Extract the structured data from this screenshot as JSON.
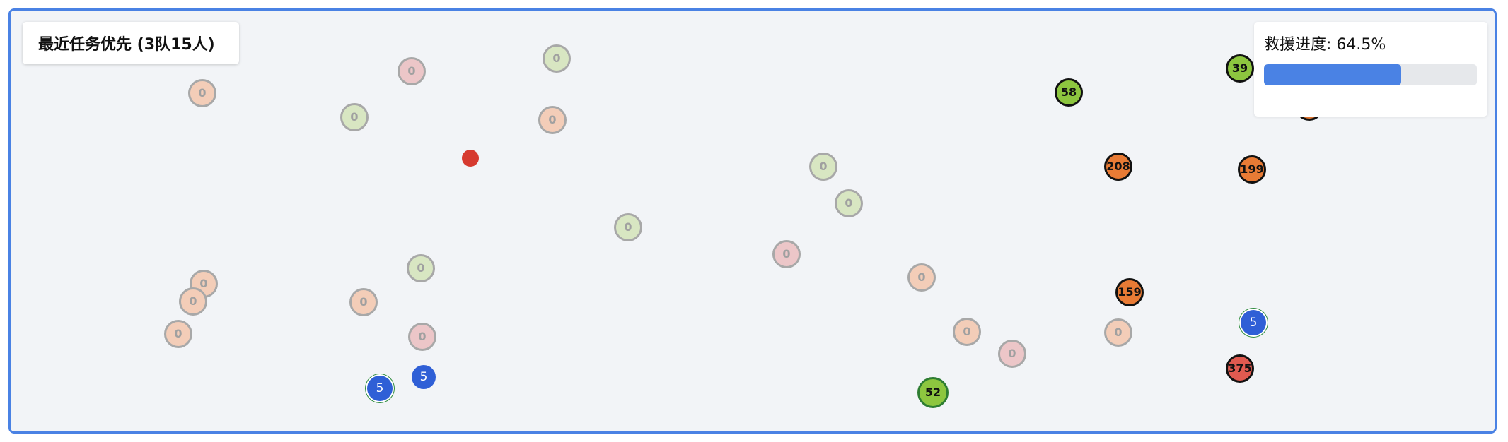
{
  "title": "最近任务优先 (3队15人)",
  "progress": {
    "label": "救援进度: 64.5%",
    "percent": 64.5,
    "fill_color": "#4a82e4"
  },
  "colors": {
    "frame_border": "#4a82e4",
    "canvas_bg": "#f2f4f7",
    "team": "#2f5fd6",
    "base": "#d63a2f",
    "faded_orange": "#f3cdb8",
    "faded_green": "#d8e6c2",
    "faded_red": "#ecc6c8",
    "active_green": "#8dc63f",
    "active_orange": "#e87b35",
    "active_red": "#e05a50"
  },
  "nodes": [
    {
      "label": "0",
      "kind": "faded",
      "color": "faded_orange"
    },
    {
      "label": "0",
      "kind": "faded",
      "color": "faded_red"
    },
    {
      "label": "0",
      "kind": "faded",
      "color": "faded_green"
    },
    {
      "label": "0",
      "kind": "faded",
      "color": "faded_green"
    },
    {
      "label": "0",
      "kind": "faded",
      "color": "faded_orange"
    },
    {
      "label": "0",
      "kind": "faded",
      "color": "faded_green"
    },
    {
      "label": "0",
      "kind": "faded",
      "color": "faded_green"
    },
    {
      "label": "0",
      "kind": "faded",
      "color": "faded_green"
    },
    {
      "label": "0",
      "kind": "faded",
      "color": "faded_red"
    },
    {
      "label": "0",
      "kind": "faded",
      "color": "faded_orange"
    },
    {
      "label": "0",
      "kind": "faded",
      "color": "faded_orange"
    },
    {
      "label": "0",
      "kind": "faded",
      "color": "faded_green"
    },
    {
      "label": "0",
      "kind": "faded",
      "color": "faded_orange"
    },
    {
      "label": "0",
      "kind": "faded",
      "color": "faded_orange"
    },
    {
      "label": "0",
      "kind": "faded",
      "color": "faded_red"
    },
    {
      "label": "0",
      "kind": "faded",
      "color": "faded_orange"
    },
    {
      "label": "0",
      "kind": "faded",
      "color": "faded_orange"
    },
    {
      "label": "0",
      "kind": "faded",
      "color": "faded_orange"
    },
    {
      "label": "0",
      "kind": "faded",
      "color": "faded_red"
    },
    {
      "label": "58",
      "kind": "active",
      "color": "active_green"
    },
    {
      "label": "39",
      "kind": "active",
      "color": "active_green"
    },
    {
      "label": "",
      "kind": "active",
      "color": "active_orange"
    },
    {
      "label": "208",
      "kind": "active",
      "color": "active_orange"
    },
    {
      "label": "199",
      "kind": "active",
      "color": "active_orange"
    },
    {
      "label": "159",
      "kind": "active",
      "color": "active_orange"
    },
    {
      "label": "375",
      "kind": "active",
      "color": "active_red"
    },
    {
      "label": "52",
      "kind": "active",
      "color": "active_green"
    },
    {
      "label": "5",
      "kind": "team",
      "color": "team",
      "ring": true
    },
    {
      "label": "5",
      "kind": "team",
      "color": "team",
      "ring": false
    },
    {
      "label": "5",
      "kind": "team",
      "color": "team",
      "ring": true
    },
    {
      "label": "",
      "kind": "base",
      "color": "base"
    }
  ]
}
